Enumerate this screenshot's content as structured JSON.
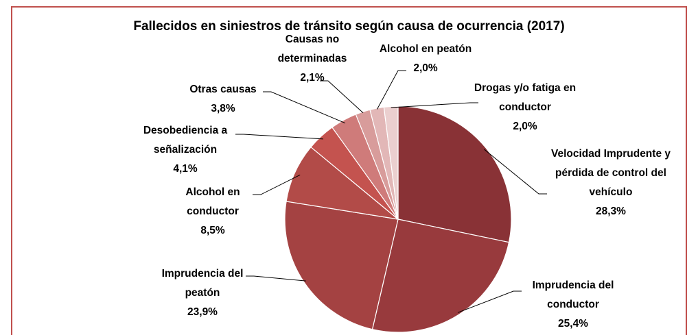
{
  "chart_data": {
    "type": "pie",
    "title": "Fallecidos en siniestros de tránsito según causa de ocurrencia (2017)",
    "categories": [
      "Velocidad Imprudente y pérdida de control del vehículo",
      "Imprudencia del conductor",
      "Imprudencia del peatón",
      "Alcohol en conductor",
      "Desobediencia a señalización",
      "Otras causas",
      "Causas no determinadas",
      "Alcohol en peatón",
      "Drogas y/o fatiga en conductor"
    ],
    "values": [
      28.3,
      25.4,
      23.9,
      8.5,
      4.1,
      3.8,
      2.1,
      2.0,
      2.0
    ],
    "value_labels": [
      "28,3%",
      "25,4%",
      "23,9%",
      "8,5%",
      "4,1%",
      "3,8%",
      "2,1%",
      "2,0%",
      "2,0%"
    ],
    "colors": [
      "#893236",
      "#983a3d",
      "#a44242",
      "#b24b48",
      "#c4534f",
      "#cf7b7a",
      "#d89c9b",
      "#e2b7b7",
      "#ebcfcf"
    ]
  }
}
